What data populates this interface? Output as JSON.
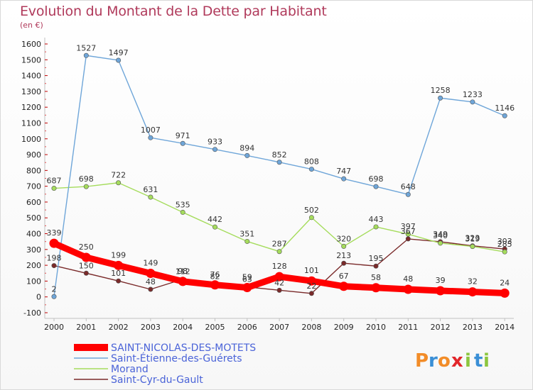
{
  "page": {
    "title": "Evolution du Montant de la Dette par Habitant",
    "unit": "(en €)"
  },
  "brand": {
    "letters": [
      "P",
      "r",
      "o",
      "x",
      "i",
      "t",
      "i"
    ],
    "colors": [
      "#f28c28",
      "#3a8fd6",
      "#f28c28",
      "#e2262b",
      "#8cc63f",
      "#3a8fd6",
      "#8cc63f"
    ]
  },
  "chart_data": {
    "type": "line",
    "title": "Evolution du Montant de la Dette par Habitant",
    "subtitle": "(en €)",
    "xlabel": "",
    "ylabel": "",
    "x": [
      "2000",
      "2001",
      "2002",
      "2003",
      "2004",
      "2005",
      "2006",
      "2007",
      "2008",
      "2009",
      "2010",
      "2011",
      "2012",
      "2013",
      "2014"
    ],
    "ylim": [
      -100,
      1600
    ],
    "yticks": [
      -100,
      0,
      100,
      200,
      300,
      400,
      500,
      600,
      700,
      800,
      900,
      1000,
      1100,
      1200,
      1300,
      1400,
      1500,
      1600
    ],
    "grid": false,
    "legend_position": "bottom-left",
    "series": [
      {
        "name": "SAINT-NICOLAS-DES-MOTETS",
        "color": "#ff0000",
        "emphasis": true,
        "values": [
          339,
          250,
          199,
          149,
          98,
          76,
          59,
          128,
          101,
          67,
          58,
          48,
          39,
          32,
          24
        ]
      },
      {
        "name": "Saint-Étienne-des-Guérets",
        "color": "#6fa6d9",
        "emphasis": false,
        "values": [
          2,
          1527,
          1497,
          1007,
          971,
          933,
          894,
          852,
          808,
          747,
          698,
          648,
          1258,
          1233,
          1146
        ]
      },
      {
        "name": "Morand",
        "color": "#a5dc5c",
        "emphasis": false,
        "values": [
          687,
          698,
          722,
          631,
          535,
          442,
          351,
          287,
          502,
          320,
          443,
          397,
          340,
          319,
          285
        ]
      },
      {
        "name": "Saint-Cyr-du-Gault",
        "color": "#7a2a2a",
        "emphasis": false,
        "values": [
          198,
          150,
          101,
          48,
          112,
          82,
          63,
          42,
          22,
          213,
          195,
          367,
          349,
          323,
          303
        ]
      }
    ]
  }
}
